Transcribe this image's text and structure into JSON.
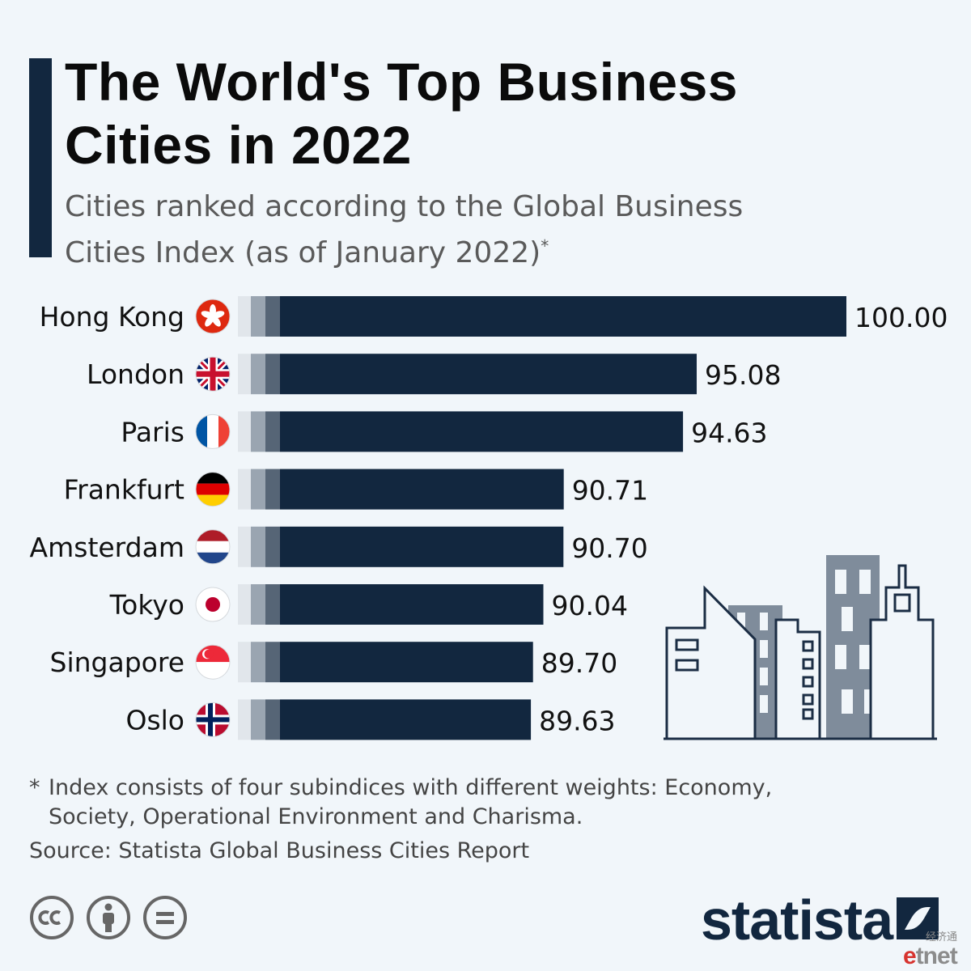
{
  "title": "The World's Top Business Cities in 2022",
  "subtitle": "Cities ranked according to the Global Business Cities Index (as of January 2022)",
  "subtitle_marker": "*",
  "footnote": {
    "marker": "*",
    "line1": "Index consists of four subindices with different weights: Economy,",
    "line2": "Society, Operational Environment and Charisma."
  },
  "source": "Source: Statista Global Business Cities Report",
  "brand": "statista",
  "watermark": {
    "cn": "经济通",
    "en_e": "e",
    "en_rest": "tnet"
  },
  "colors": {
    "bar": "#12273f",
    "bar_light1": "#e1e6eb",
    "bar_light2": "#9aa5b1",
    "bar_light3": "#566576",
    "building": "#7f8c9b",
    "outline": "#1b2d44",
    "background": "#f1f6fa"
  },
  "icons": [
    "cc-icon",
    "attribution-icon",
    "no-derivatives-icon",
    "statista-logo-icon",
    "buildings-illustration"
  ],
  "chart_data": {
    "type": "bar",
    "orientation": "horizontal",
    "categories": [
      "Hong Kong",
      "London",
      "Paris",
      "Frankfurt",
      "Amsterdam",
      "Tokyo",
      "Singapore",
      "Oslo"
    ],
    "labels": [
      "100.00",
      "95.08",
      "94.63",
      "90.71",
      "90.70",
      "90.04",
      "89.70",
      "89.63"
    ],
    "values": [
      100.0,
      95.08,
      94.63,
      90.71,
      90.7,
      90.04,
      89.7,
      89.63
    ],
    "flags": [
      "hong-kong",
      "uk",
      "france",
      "germany",
      "netherlands",
      "japan",
      "singapore",
      "norway"
    ],
    "xlim": [
      80,
      100
    ]
  }
}
